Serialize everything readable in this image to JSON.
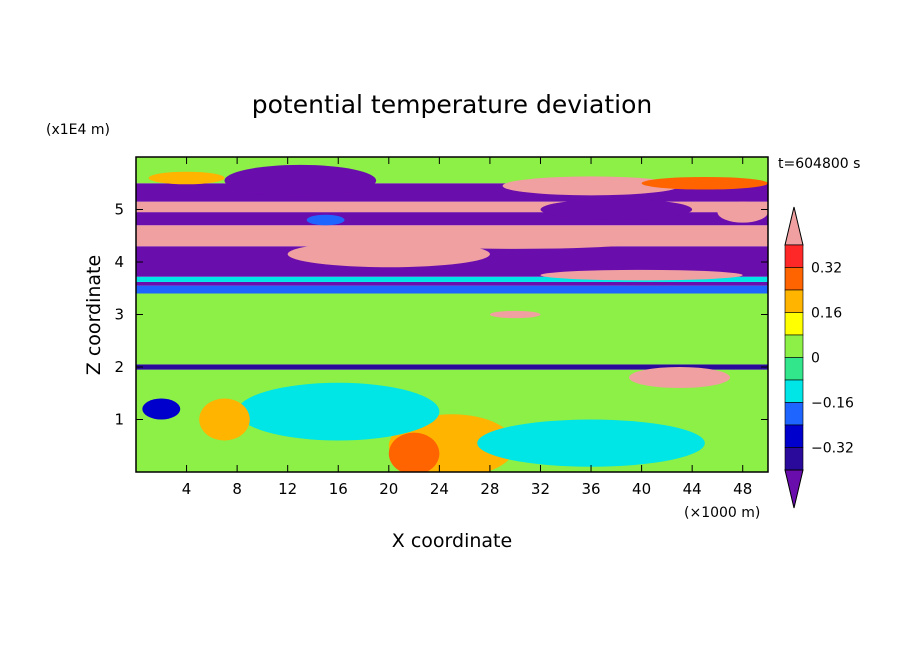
{
  "chart_data": {
    "type": "heatmap",
    "title": "potential temperature deviation",
    "xlabel": "X coordinate",
    "ylabel": "Z coordinate",
    "x_unit": "(×1000 m)",
    "y_unit": "(x1E4 m)",
    "time_label": "t=604800 s",
    "xlim": [
      0,
      50
    ],
    "ylim": [
      0,
      6
    ],
    "x_ticks": [
      "4",
      "8",
      "12",
      "16",
      "20",
      "24",
      "28",
      "32",
      "36",
      "40",
      "44",
      "48"
    ],
    "y_ticks": [
      "1",
      "2",
      "3",
      "4",
      "5"
    ],
    "colorbar": {
      "levels": [
        -0.48,
        -0.4,
        -0.32,
        -0.24,
        -0.16,
        -0.08,
        0,
        0.08,
        0.16,
        0.24,
        0.32,
        0.4
      ],
      "labels": [
        "0.32",
        "0.16",
        "0",
        "−0.16",
        "−0.32"
      ],
      "colors": [
        "#6a0dad",
        "#2a0a9a",
        "#0000cd",
        "#1e64ff",
        "#00e6e6",
        "#32e68c",
        "#8cf046",
        "#ffff00",
        "#ffb400",
        "#ff6400",
        "#ff2828",
        "#f0a0a0"
      ]
    },
    "bands": [
      {
        "z0": 0.0,
        "z1": 1.95,
        "value": 0.04
      },
      {
        "z0": 1.95,
        "z1": 2.05,
        "value": -0.4
      },
      {
        "z0": 2.05,
        "z1": 3.4,
        "value": 0.06
      },
      {
        "z0": 3.4,
        "z1": 3.55,
        "value": -0.2
      },
      {
        "z0": 3.55,
        "z1": 3.62,
        "value": -0.45
      },
      {
        "z0": 3.62,
        "z1": 3.72,
        "value": -0.15
      },
      {
        "z0": 3.72,
        "z1": 3.8,
        "value": -0.45
      },
      {
        "z0": 3.8,
        "z1": 4.3,
        "value": -0.48
      },
      {
        "z0": 4.3,
        "z1": 4.7,
        "value": 0.45
      },
      {
        "z0": 4.7,
        "z1": 4.95,
        "value": -0.48
      },
      {
        "z0": 4.95,
        "z1": 5.15,
        "value": 0.45
      },
      {
        "z0": 5.15,
        "z1": 5.5,
        "value": -0.48
      },
      {
        "z0": 5.5,
        "z1": 6.0,
        "value": 0.02
      }
    ],
    "patches": [
      {
        "cx": 25,
        "cz": 0.5,
        "rx": 5,
        "rz": 0.6,
        "value": 0.2
      },
      {
        "cx": 22,
        "cz": 0.35,
        "rx": 2,
        "rz": 0.4,
        "value": 0.3
      },
      {
        "cx": 36,
        "cz": 0.55,
        "rx": 9,
        "rz": 0.45,
        "value": -0.12
      },
      {
        "cx": 16,
        "cz": 1.15,
        "rx": 8,
        "rz": 0.55,
        "value": -0.1
      },
      {
        "cx": 7,
        "cz": 1.0,
        "rx": 2,
        "rz": 0.4,
        "value": 0.18
      },
      {
        "cx": 43,
        "cz": 1.8,
        "rx": 4,
        "rz": 0.2,
        "value": 0.45
      },
      {
        "cx": 2,
        "cz": 1.2,
        "rx": 1.5,
        "rz": 0.2,
        "value": -0.3
      },
      {
        "cx": 20,
        "cz": 4.15,
        "rx": 8,
        "rz": 0.25,
        "value": 0.45
      },
      {
        "cx": 30,
        "cz": 4.45,
        "rx": 12,
        "rz": 0.2,
        "value": 0.45
      },
      {
        "cx": 40,
        "cz": 3.75,
        "rx": 8,
        "rz": 0.1,
        "value": 0.45
      },
      {
        "cx": 13,
        "cz": 5.55,
        "rx": 6,
        "rz": 0.3,
        "value": -0.48
      },
      {
        "cx": 36,
        "cz": 5.45,
        "rx": 7,
        "rz": 0.18,
        "value": 0.45
      },
      {
        "cx": 38,
        "cz": 5.0,
        "rx": 6,
        "rz": 0.2,
        "value": -0.48
      },
      {
        "cx": 45,
        "cz": 5.5,
        "rx": 5,
        "rz": 0.12,
        "value": 0.3
      },
      {
        "cx": 4,
        "cz": 5.6,
        "rx": 3,
        "rz": 0.12,
        "value": 0.16
      },
      {
        "cx": 48,
        "cz": 4.95,
        "rx": 2,
        "rz": 0.2,
        "value": 0.45
      },
      {
        "cx": 30,
        "cz": 3.0,
        "rx": 2,
        "rz": 0.07,
        "value": 0.45
      },
      {
        "cx": 15,
        "cz": 4.8,
        "rx": 1.5,
        "rz": 0.1,
        "value": -0.2
      }
    ]
  }
}
